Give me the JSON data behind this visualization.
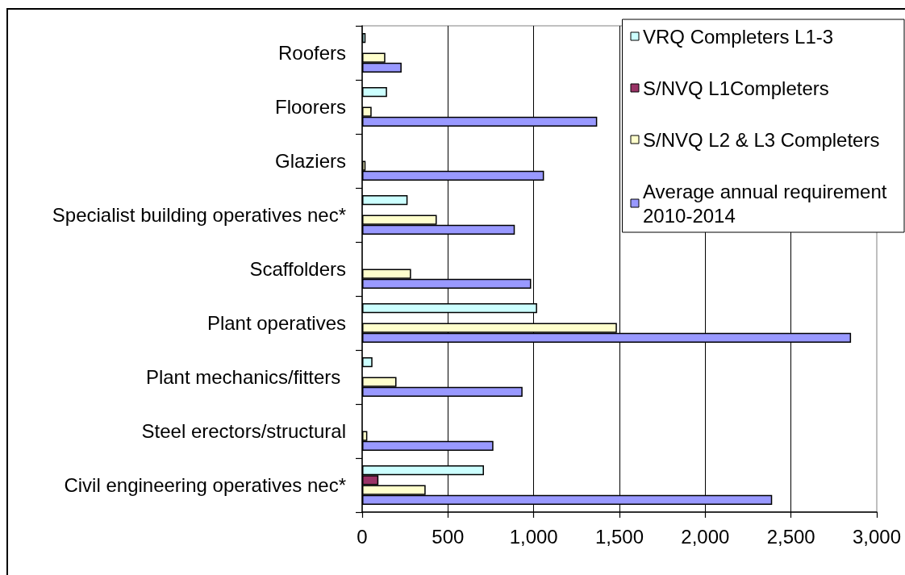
{
  "chart_data": {
    "type": "bar",
    "orientation": "horizontal",
    "categories": [
      "Roofers",
      "Floorers",
      "Glaziers",
      "Specialist building operatives nec*",
      "Scaffolders",
      "Plant operatives",
      "Plant mechanics/fitters ",
      "Steel erectors/structural",
      "Civil engineering operatives nec*"
    ],
    "series": [
      {
        "name": "VRQ Completers L1-3",
        "color": "#ccffff",
        "values": [
          20,
          145,
          null,
          265,
          null,
          1020,
          60,
          null,
          710
        ]
      },
      {
        "name": "S/NVQ L1Completers",
        "color": "#993366",
        "values": [
          null,
          null,
          null,
          null,
          null,
          null,
          null,
          null,
          95
        ]
      },
      {
        "name": "S/NVQ L2 & L3 Completers",
        "color": "#ffffcc",
        "values": [
          135,
          55,
          20,
          435,
          285,
          1485,
          200,
          30,
          370
        ]
      },
      {
        "name": "Average annual requirement 2010-2014",
        "color": "#9999ff",
        "values": [
          230,
          1370,
          1060,
          890,
          985,
          2850,
          935,
          765,
          2390
        ]
      }
    ],
    "xlim": [
      0,
      3000
    ],
    "xticks": [
      0,
      500,
      {
        "value": 1000,
        "label": "1,000"
      },
      {
        "value": 1500,
        "label": "1,500"
      },
      {
        "value": 2000,
        "label": "2,000"
      },
      {
        "value": 2500,
        "label": "2,500"
      },
      {
        "value": 3000,
        "label": "3,000"
      }
    ],
    "grid": "x",
    "legend": "top right"
  }
}
